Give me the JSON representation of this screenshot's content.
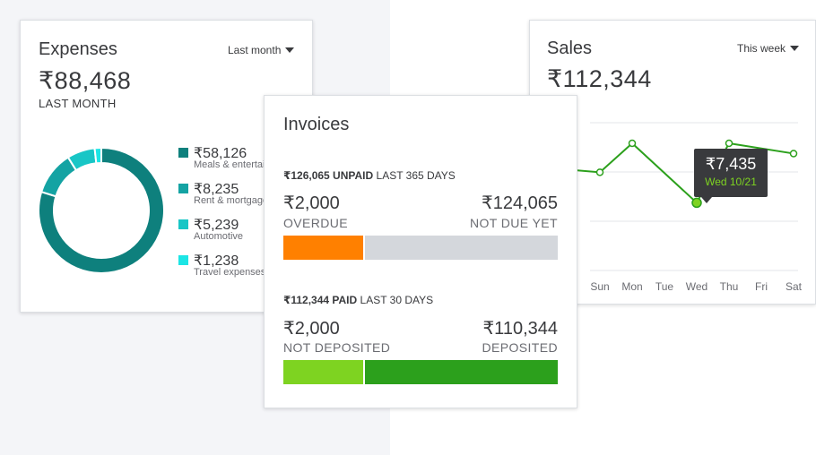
{
  "expenses": {
    "title": "Expenses",
    "period": "Last month",
    "total": "₹88,468",
    "caption": "LAST MONTH",
    "items": [
      {
        "amount": "₹58,126",
        "label": "Meals & entertainment",
        "value": 58126,
        "color": "#0e807d"
      },
      {
        "amount": "₹8,235",
        "label": "Rent & mortgage",
        "value": 8235,
        "color": "#14a3a3"
      },
      {
        "amount": "₹5,239",
        "label": "Automotive",
        "value": 5239,
        "color": "#18c6c6"
      },
      {
        "amount": "₹1,238",
        "label": "Travel expenses",
        "value": 1238,
        "color": "#1ce5e5"
      }
    ]
  },
  "sales": {
    "title": "Sales",
    "period": "This week",
    "total": "₹112,344",
    "tooltip": {
      "value": "₹7,435",
      "date": "Wed 10/21"
    }
  },
  "invoices": {
    "title": "Invoices",
    "unpaid": {
      "summary_amount": "₹126,065 UNPAID",
      "summary_period": "LAST 365 DAYS",
      "overdue_amount": "₹2,000",
      "overdue_label": "OVERDUE",
      "notdue_amount": "₹124,065",
      "notdue_label": "NOT DUE YET",
      "overdue_fraction": 0.29,
      "overdue_color": "#ff8000",
      "notdue_color": "#d4d7dc"
    },
    "paid": {
      "summary_amount": "₹112,344 PAID",
      "summary_period": "LAST 30 DAYS",
      "notdeposited_amount": "₹2,000",
      "notdeposited_label": "NOT DEPOSITED",
      "deposited_amount": "₹110,344",
      "deposited_label": "DEPOSITED",
      "notdeposited_fraction": 0.29,
      "notdeposited_color": "#7ed321",
      "deposited_color": "#2ca01c"
    }
  },
  "chart_data": {
    "type": "line",
    "title": "Sales",
    "categories": [
      "Sun",
      "Mon",
      "Tue",
      "Wed",
      "Thu",
      "Fri",
      "Sat"
    ],
    "values": [
      10700,
      13800,
      null,
      7435,
      13800,
      null,
      12700
    ],
    "series_color": "#2ca01c",
    "grid": true,
    "highlight": {
      "category": "Wed",
      "value": 7435
    }
  }
}
